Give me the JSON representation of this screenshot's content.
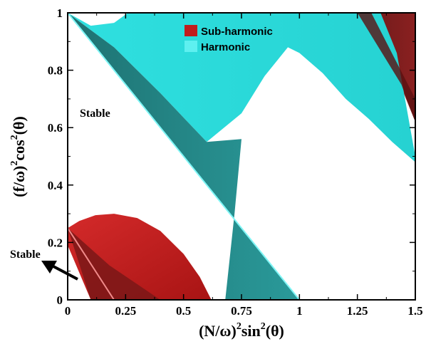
{
  "chart_data": {
    "type": "area",
    "xlabel_base": "(N/ω)",
    "xlabel_exp": "2",
    "xlabel_rest": "sin",
    "xlabel_exp2": "2",
    "xlabel_arg": "(θ)",
    "ylabel_base": "(f/ω)",
    "ylabel_exp": "2",
    "ylabel_rest": "cos",
    "ylabel_exp2": "2",
    "ylabel_arg": "(θ)",
    "xlim": [
      0,
      1.5
    ],
    "ylim": [
      0,
      1
    ],
    "xticks": [
      0,
      0.25,
      0.5,
      0.75,
      1,
      1.25,
      1.5
    ],
    "xtick_labels": [
      "0",
      "0.25",
      "0.5",
      "0.75",
      "1",
      "1.25",
      "1.5"
    ],
    "yticks": [
      0,
      0.2,
      0.4,
      0.6,
      0.8,
      1
    ],
    "ytick_labels": [
      "0",
      "0.2",
      "0.4",
      "0.6",
      "0.8",
      "1"
    ],
    "legend_position": "top-center",
    "series": [
      {
        "name": "Sub-harmonic",
        "color": "#c01c1c",
        "regions": [
          {
            "boundary": [
              [
                0,
                0.25
              ],
              [
                0.05,
                0.275
              ],
              [
                0.12,
                0.295
              ],
              [
                0.2,
                0.3
              ],
              [
                0.3,
                0.285
              ],
              [
                0.4,
                0.24
              ],
              [
                0.5,
                0.16
              ],
              [
                0.57,
                0.08
              ],
              [
                0.62,
                0
              ],
              [
                0.1,
                0
              ],
              [
                0,
                0.19
              ]
            ]
          },
          {
            "boundary": [
              [
                1.26,
                1
              ],
              [
                1.5,
                1
              ],
              [
                1.5,
                0.62
              ],
              [
                1.43,
                0.76
              ],
              [
                1.35,
                0.9
              ]
            ]
          }
        ]
      },
      {
        "name": "Harmonic",
        "color": "#22d6d6",
        "regions": [
          {
            "boundary": [
              [
                0,
                1
              ],
              [
                0.1,
                0.955
              ],
              [
                0.2,
                0.965
              ],
              [
                0.26,
                1
              ],
              [
                1.35,
                1
              ],
              [
                1.42,
                0.86
              ],
              [
                1.5,
                0.5
              ],
              [
                1.5,
                0.48
              ],
              [
                1.4,
                0.55
              ],
              [
                1.3,
                0.63
              ],
              [
                1.2,
                0.7
              ],
              [
                1.1,
                0.79
              ],
              [
                1.0,
                0.86
              ],
              [
                0.95,
                0.88
              ],
              [
                0.85,
                0.78
              ],
              [
                0.75,
                0.65
              ],
              [
                0.6,
                0.55
              ],
              [
                0.4,
                0.72
              ],
              [
                0.2,
                0.88
              ],
              [
                0.1,
                0.94
              ]
            ]
          },
          {
            "boundary": [
              [
                0,
                1
              ],
              [
                0.2,
                0.8
              ],
              [
                0.4,
                0.6
              ],
              [
                0.6,
                0.4
              ],
              [
                0.8,
                0.2
              ],
              [
                1,
                0
              ],
              [
                0.68,
                0
              ],
              [
                0.72,
                0.3
              ],
              [
                0.75,
                0.56
              ],
              [
                0.6,
                0.55
              ],
              [
                0.4,
                0.72
              ],
              [
                0.2,
                0.88
              ],
              [
                0.1,
                0.94
              ]
            ]
          }
        ]
      }
    ],
    "annotations": [
      {
        "text": "Stable",
        "x": 0.15,
        "y": 0.64
      },
      {
        "text": "Stable",
        "x": -0.14,
        "y": 0.145,
        "arrow_to": [
          -0.11,
          0.13
        ]
      }
    ]
  }
}
